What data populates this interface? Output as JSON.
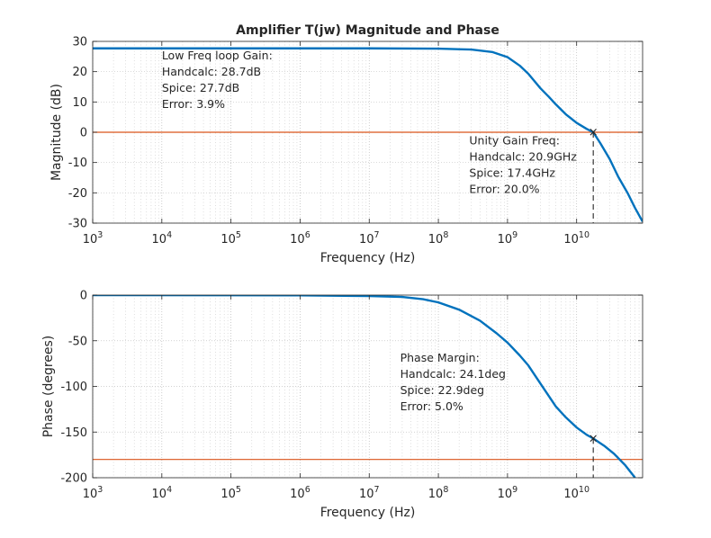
{
  "chart_data": [
    {
      "type": "line",
      "title": "Amplifier T(jw) Magnitude and Phase",
      "xlabel": "Frequency (Hz)",
      "ylabel": "Magnitude (dB)",
      "x_scale": "log",
      "xlim": [
        1000,
        90000000000
      ],
      "ylim": [
        -30,
        30
      ],
      "x_tick_labels": [
        {
          "base": "10",
          "exp": "3",
          "value": 1000
        },
        {
          "base": "10",
          "exp": "4",
          "value": 10000
        },
        {
          "base": "10",
          "exp": "5",
          "value": 100000
        },
        {
          "base": "10",
          "exp": "6",
          "value": 1000000
        },
        {
          "base": "10",
          "exp": "7",
          "value": 10000000
        },
        {
          "base": "10",
          "exp": "8",
          "value": 100000000
        },
        {
          "base": "10",
          "exp": "9",
          "value": 1000000000
        },
        {
          "base": "10",
          "exp": "10",
          "value": 10000000000
        }
      ],
      "y_ticks": [
        -30,
        -20,
        -10,
        0,
        10,
        20,
        30
      ],
      "grid": true,
      "series": [
        {
          "color": "#0072bd",
          "points": [
            [
              1000,
              27.7
            ],
            [
              100000,
              27.7
            ],
            [
              10000000,
              27.7
            ],
            [
              100000000,
              27.6
            ],
            [
              300000000,
              27.3
            ],
            [
              600000000,
              26.5
            ],
            [
              1000000000,
              24.8
            ],
            [
              1500000000,
              22.0
            ],
            [
              2000000000,
              19.3
            ],
            [
              3000000000,
              14.5
            ],
            [
              4000000000,
              11.6
            ],
            [
              5000000000,
              9.2
            ],
            [
              7000000000,
              5.9
            ],
            [
              10000000000,
              3.1
            ],
            [
              14000000000,
              1.1
            ],
            [
              17400000000,
              0.0
            ],
            [
              22000000000,
              -3.6
            ],
            [
              30000000000,
              -8.8
            ],
            [
              40000000000,
              -14.7
            ],
            [
              55000000000,
              -20.2
            ],
            [
              70000000000,
              -25.0
            ],
            [
              90000000000,
              -29.5
            ]
          ]
        }
      ],
      "reference_line": {
        "y": 0,
        "color": "#d95319"
      },
      "marker": {
        "x": 17400000000,
        "y": 0,
        "symbol": "×",
        "drop_to": -30
      },
      "annotations": [
        {
          "lines": [
            "Low Freq loop Gain:",
            "Handcalc: 28.7dB",
            "Spice: 27.7dB",
            "Error: 3.9%"
          ],
          "x": 10000,
          "y": 24
        },
        {
          "lines": [
            "Unity Gain Freq:",
            "Handcalc: 20.9GHz",
            "Spice: 17.4GHz",
            "Error: 20.0%"
          ],
          "x": 280000000,
          "y": -4
        }
      ]
    },
    {
      "type": "line",
      "title": "",
      "xlabel": "Frequency (Hz)",
      "ylabel": "Phase (degrees)",
      "x_scale": "log",
      "xlim": [
        1000,
        90000000000
      ],
      "ylim": [
        -200,
        0
      ],
      "x_tick_labels": [
        {
          "base": "10",
          "exp": "3",
          "value": 1000
        },
        {
          "base": "10",
          "exp": "4",
          "value": 10000
        },
        {
          "base": "10",
          "exp": "5",
          "value": 100000
        },
        {
          "base": "10",
          "exp": "6",
          "value": 1000000
        },
        {
          "base": "10",
          "exp": "7",
          "value": 10000000
        },
        {
          "base": "10",
          "exp": "8",
          "value": 100000000
        },
        {
          "base": "10",
          "exp": "9",
          "value": 1000000000
        },
        {
          "base": "10",
          "exp": "10",
          "value": 10000000000
        }
      ],
      "y_ticks": [
        -200,
        -150,
        -100,
        -50,
        0
      ],
      "grid": true,
      "series": [
        {
          "color": "#0072bd",
          "points": [
            [
              1000,
              0
            ],
            [
              1000000,
              -0.3
            ],
            [
              10000000,
              -1.0
            ],
            [
              30000000,
              -2.0
            ],
            [
              60000000,
              -4.5
            ],
            [
              100000000,
              -8.0
            ],
            [
              200000000,
              -16.0
            ],
            [
              400000000,
              -28.0
            ],
            [
              700000000,
              -42.0
            ],
            [
              1000000000,
              -52.0
            ],
            [
              1500000000,
              -66.0
            ],
            [
              2000000000,
              -77.0
            ],
            [
              3000000000,
              -97.0
            ],
            [
              5000000000,
              -122.0
            ],
            [
              7000000000,
              -134.0
            ],
            [
              10000000000,
              -145.0
            ],
            [
              14000000000,
              -153.0
            ],
            [
              17400000000,
              -157.0
            ],
            [
              25000000000,
              -165.0
            ],
            [
              35000000000,
              -174.0
            ],
            [
              50000000000,
              -186.0
            ],
            [
              70000000000,
              -200.0
            ]
          ]
        }
      ],
      "reference_line": {
        "y": -180,
        "color": "#d95319"
      },
      "marker": {
        "x": 17400000000,
        "y": -157,
        "symbol": "×",
        "drop_to": -200
      },
      "annotations": [
        {
          "lines": [
            "Phase Margin:",
            "Handcalc: 24.1deg",
            "Spice: 22.9deg",
            "Error: 5.0%"
          ],
          "x": 28000000,
          "y": -73
        }
      ]
    }
  ]
}
